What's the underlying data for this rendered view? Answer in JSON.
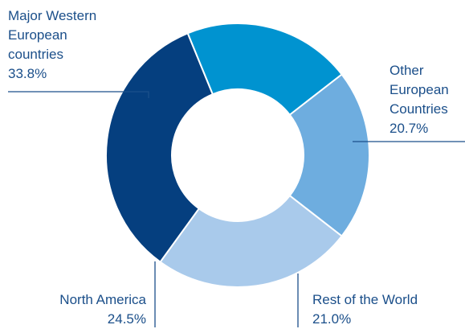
{
  "chart_data": {
    "type": "pie",
    "donut": true,
    "title": "",
    "unit": "%",
    "slices": [
      {
        "label_lines": [
          "Major Western",
          "European",
          "countries"
        ],
        "value": 33.8,
        "value_text": "33.8%",
        "color": "#053f7f"
      },
      {
        "label_lines": [
          "Other",
          "European",
          "Countries"
        ],
        "value": 20.7,
        "value_text": "20.7%",
        "color": "#0093d0"
      },
      {
        "label_lines": [
          "Rest of the World"
        ],
        "value": 21.0,
        "value_text": "21.0%",
        "color": "#6eaddf"
      },
      {
        "label_lines": [
          "North America"
        ],
        "value": 24.5,
        "value_text": "24.5%",
        "color": "#a9caeb"
      }
    ],
    "label_color": "#1b4f8a",
    "leader_color": "#1b4f8a"
  }
}
